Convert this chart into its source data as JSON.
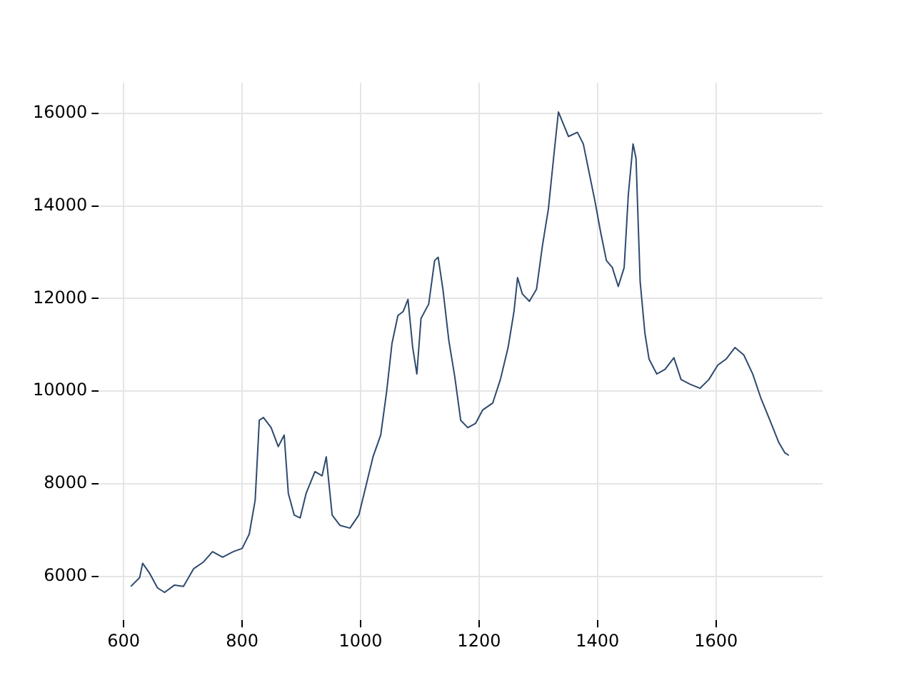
{
  "chart_data": {
    "type": "line",
    "x": [
      612,
      627,
      632,
      644,
      657,
      669,
      686,
      701,
      718,
      735,
      750,
      767,
      785,
      800,
      812,
      822,
      829,
      836,
      849,
      861,
      871,
      878,
      888,
      898,
      908,
      923,
      935,
      942,
      952,
      965,
      982,
      997,
      1006,
      1021,
      1034,
      1044,
      1053,
      1063,
      1072,
      1080,
      1088,
      1095,
      1102,
      1115,
      1125,
      1131,
      1139,
      1149,
      1159,
      1169,
      1181,
      1194,
      1206,
      1223,
      1236,
      1249,
      1259,
      1265,
      1273,
      1285,
      1297,
      1307,
      1317,
      1327,
      1334,
      1341,
      1351,
      1366,
      1376,
      1386,
      1396,
      1405,
      1415,
      1425,
      1435,
      1445,
      1452,
      1460,
      1465,
      1472,
      1480,
      1487,
      1500,
      1514,
      1529,
      1541,
      1556,
      1573,
      1588,
      1603,
      1617,
      1632,
      1647,
      1662,
      1676,
      1691,
      1706,
      1716,
      1723
    ],
    "series": [
      {
        "color": "#2e4a6e",
        "values": [
          5780,
          5970,
          6280,
          6060,
          5750,
          5650,
          5810,
          5780,
          6160,
          6310,
          6530,
          6410,
          6530,
          6600,
          6910,
          7640,
          9370,
          9430,
          9210,
          8800,
          9050,
          7790,
          7320,
          7260,
          7790,
          8260,
          8170,
          8580,
          7320,
          7100,
          7040,
          7320,
          7790,
          8580,
          9050,
          9990,
          11030,
          11630,
          11720,
          11980,
          10940,
          10370,
          11570,
          11880,
          12820,
          12890,
          12200,
          11090,
          10310,
          9370,
          9210,
          9300,
          9590,
          9740,
          10250,
          10940,
          11720,
          12450,
          12100,
          11940,
          12200,
          13140,
          13930,
          15180,
          16030,
          15810,
          15500,
          15590,
          15340,
          14710,
          14080,
          13450,
          12820,
          12670,
          12260,
          12670,
          14240,
          15340,
          15030,
          12360,
          11250,
          10690,
          10370,
          10470,
          10720,
          10250,
          10150,
          10060,
          10250,
          10560,
          10690,
          10940,
          10780,
          10370,
          9840,
          9370,
          8890,
          8670,
          8610
        ]
      }
    ],
    "xlim": [
      558,
      1780
    ],
    "xticks": [
      600,
      800,
      1000,
      1200,
      1400,
      1600
    ],
    "ylim": [
      5050,
      16660
    ],
    "yticks": [
      6000,
      8000,
      10000,
      12000,
      14000,
      16000
    ],
    "grid": true,
    "legend": false,
    "marker": "none",
    "line_style": "solid"
  }
}
